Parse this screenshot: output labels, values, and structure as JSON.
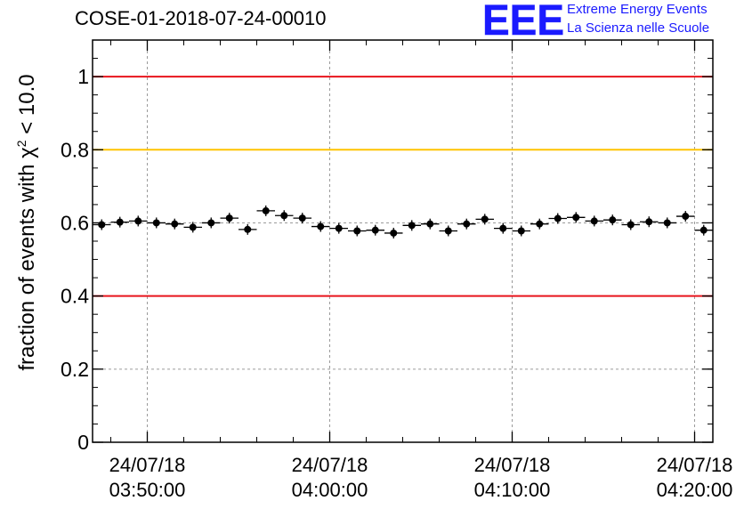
{
  "header": {
    "title": "COSE-01-2018-07-24-00010",
    "logo_text": "EEE",
    "logo_line1": "Extreme Energy Events",
    "logo_line2": "La Scienza nelle Scuole"
  },
  "axis_label": {
    "prefix": "fraction of events with ",
    "chi": "χ",
    "sup": "2",
    "suffix": " < 10.0"
  },
  "colors": {
    "red_line": "#e8141c",
    "yellow_line": "#ffc400",
    "logo_blue": "#1a1aff",
    "grid": "#9a9a9a"
  },
  "chart_data": {
    "type": "scatter",
    "title": "COSE-01-2018-07-24-00010",
    "ylabel": "fraction of events with χ² < 10.0",
    "xlabel": "",
    "ylim": [
      0,
      1.1
    ],
    "y_ticks": [
      "0",
      "0.2",
      "0.4",
      "0.6",
      "0.8",
      "1"
    ],
    "x_time_range": [
      "03:47:00",
      "04:21:00"
    ],
    "x_ticks": [
      {
        "time": "03:50:00",
        "date": "24/07/18",
        "label": "03:50:00"
      },
      {
        "time": "04:00:00",
        "date": "24/07/18",
        "label": "04:00:00"
      },
      {
        "time": "04:10:00",
        "date": "24/07/18",
        "label": "04:10:00"
      },
      {
        "time": "04:20:00",
        "date": "24/07/18",
        "label": "04:20:00"
      }
    ],
    "grid": true,
    "reference_lines": [
      {
        "y": 1.0,
        "color": "#e8141c"
      },
      {
        "y": 0.8,
        "color": "#ffc400"
      },
      {
        "y": 0.4,
        "color": "#e8141c"
      }
    ],
    "series": [
      {
        "points": [
          {
            "time": "03:47:30",
            "y": 0.595
          },
          {
            "time": "03:48:30",
            "y": 0.602
          },
          {
            "time": "03:49:30",
            "y": 0.605
          },
          {
            "time": "03:50:30",
            "y": 0.6
          },
          {
            "time": "03:51:30",
            "y": 0.597
          },
          {
            "time": "03:52:30",
            "y": 0.588
          },
          {
            "time": "03:53:30",
            "y": 0.6
          },
          {
            "time": "03:54:30",
            "y": 0.613
          },
          {
            "time": "03:55:30",
            "y": 0.582
          },
          {
            "time": "03:56:30",
            "y": 0.633
          },
          {
            "time": "03:57:30",
            "y": 0.62
          },
          {
            "time": "03:58:30",
            "y": 0.613
          },
          {
            "time": "03:59:30",
            "y": 0.59
          },
          {
            "time": "04:00:30",
            "y": 0.585
          },
          {
            "time": "04:01:30",
            "y": 0.578
          },
          {
            "time": "04:02:30",
            "y": 0.58
          },
          {
            "time": "04:03:30",
            "y": 0.572
          },
          {
            "time": "04:04:30",
            "y": 0.593
          },
          {
            "time": "04:05:30",
            "y": 0.597
          },
          {
            "time": "04:06:30",
            "y": 0.578
          },
          {
            "time": "04:07:30",
            "y": 0.597
          },
          {
            "time": "04:08:30",
            "y": 0.61
          },
          {
            "time": "04:09:30",
            "y": 0.585
          },
          {
            "time": "04:10:30",
            "y": 0.578
          },
          {
            "time": "04:11:30",
            "y": 0.597
          },
          {
            "time": "04:12:30",
            "y": 0.612
          },
          {
            "time": "04:13:30",
            "y": 0.615
          },
          {
            "time": "04:14:30",
            "y": 0.605
          },
          {
            "time": "04:15:30",
            "y": 0.608
          },
          {
            "time": "04:16:30",
            "y": 0.595
          },
          {
            "time": "04:17:30",
            "y": 0.603
          },
          {
            "time": "04:18:30",
            "y": 0.6
          },
          {
            "time": "04:19:30",
            "y": 0.618
          },
          {
            "time": "04:20:30",
            "y": 0.58
          }
        ]
      }
    ]
  }
}
